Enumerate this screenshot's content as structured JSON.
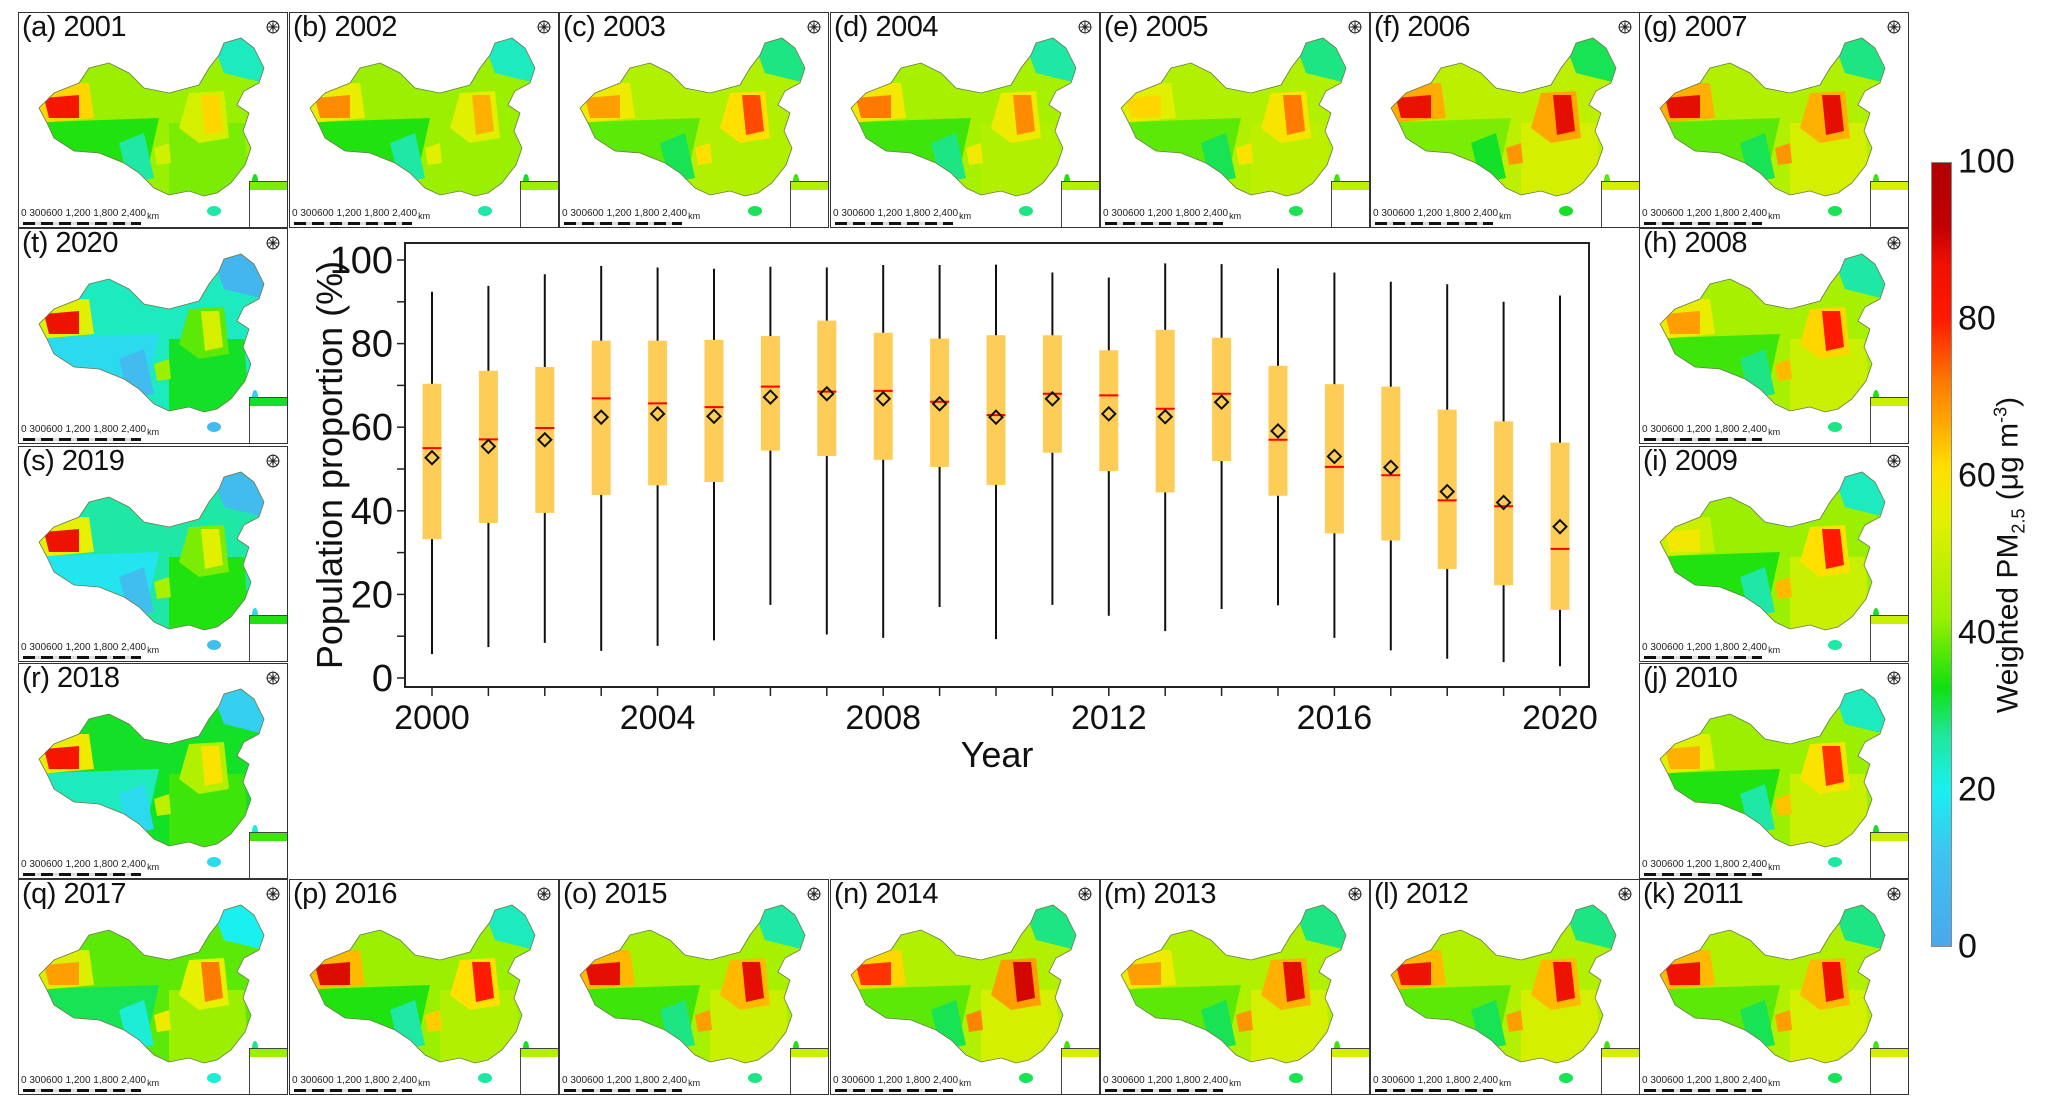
{
  "figure": {
    "panels": [
      {
        "id": "a",
        "label": "(a) 2001",
        "year": 2001,
        "west": 0.82,
        "north": 0.62,
        "base": 0.42,
        "south": 0.4
      },
      {
        "id": "b",
        "label": "(b) 2002",
        "year": 2002,
        "west": 0.7,
        "north": 0.66,
        "base": 0.42,
        "south": 0.42
      },
      {
        "id": "c",
        "label": "(c) 2003",
        "year": 2003,
        "west": 0.68,
        "north": 0.76,
        "base": 0.46,
        "south": 0.46
      },
      {
        "id": "d",
        "label": "(d) 2004",
        "year": 2004,
        "west": 0.72,
        "north": 0.7,
        "base": 0.44,
        "south": 0.46
      },
      {
        "id": "e",
        "label": "(e) 2005",
        "year": 2005,
        "west": 0.62,
        "north": 0.72,
        "base": 0.46,
        "south": 0.48
      },
      {
        "id": "f",
        "label": "(f) 2006",
        "year": 2006,
        "west": 0.85,
        "north": 0.86,
        "base": 0.48,
        "south": 0.52
      },
      {
        "id": "g",
        "label": "(g) 2007",
        "year": 2007,
        "west": 0.86,
        "north": 0.86,
        "base": 0.46,
        "south": 0.52
      },
      {
        "id": "h",
        "label": "(h) 2008",
        "year": 2008,
        "west": 0.68,
        "north": 0.8,
        "base": 0.44,
        "south": 0.5
      },
      {
        "id": "i",
        "label": "(i) 2009",
        "year": 2009,
        "west": 0.58,
        "north": 0.8,
        "base": 0.42,
        "south": 0.5
      },
      {
        "id": "j",
        "label": "(j) 2010",
        "year": 2010,
        "west": 0.66,
        "north": 0.78,
        "base": 0.42,
        "south": 0.5
      },
      {
        "id": "k",
        "label": "(k) 2011",
        "year": 2011,
        "west": 0.84,
        "north": 0.84,
        "base": 0.46,
        "south": 0.52
      },
      {
        "id": "l",
        "label": "(l) 2012",
        "year": 2012,
        "west": 0.84,
        "north": 0.84,
        "base": 0.46,
        "south": 0.52
      },
      {
        "id": "m",
        "label": "(m) 2013",
        "year": 2013,
        "west": 0.68,
        "north": 0.86,
        "base": 0.46,
        "south": 0.52
      },
      {
        "id": "n",
        "label": "(n) 2014",
        "year": 2014,
        "west": 0.78,
        "north": 0.9,
        "base": 0.46,
        "south": 0.52
      },
      {
        "id": "o",
        "label": "(o) 2015",
        "year": 2015,
        "west": 0.86,
        "north": 0.86,
        "base": 0.44,
        "south": 0.5
      },
      {
        "id": "p",
        "label": "(p) 2016",
        "year": 2016,
        "west": 0.88,
        "north": 0.8,
        "base": 0.42,
        "south": 0.46
      },
      {
        "id": "q",
        "label": "(q) 2017",
        "year": 2017,
        "west": 0.68,
        "north": 0.72,
        "base": 0.38,
        "south": 0.42
      },
      {
        "id": "r",
        "label": "(r) 2018",
        "year": 2018,
        "west": 0.82,
        "north": 0.6,
        "base": 0.32,
        "south": 0.36
      },
      {
        "id": "s",
        "label": "(s) 2019",
        "year": 2019,
        "west": 0.84,
        "north": 0.54,
        "base": 0.26,
        "south": 0.34
      },
      {
        "id": "t",
        "label": "(t) 2020",
        "year": 2020,
        "west": 0.84,
        "north": 0.52,
        "base": 0.24,
        "south": 0.32
      }
    ],
    "scale_bar": {
      "ticks": "0  300600    1,200   1,800   2,400",
      "unit": "km"
    },
    "colorbar": {
      "title_main": "Weighted PM",
      "title_sub": "2.5",
      "title_unit_pre": " (μg m",
      "title_unit_sup": "-3",
      "title_unit_post": ")",
      "ticks": [
        "0",
        "20",
        "40",
        "60",
        "80",
        "100"
      ],
      "range": [
        0,
        100
      ]
    }
  },
  "chart_data": {
    "type": "box",
    "title": "",
    "xlabel": "Year",
    "ylabel": "Population proportion (%)",
    "ylim": [
      0,
      100
    ],
    "yticks": [
      0,
      20,
      40,
      60,
      80,
      100
    ],
    "xticks_labeled": [
      2000,
      2004,
      2008,
      2012,
      2016,
      2020
    ],
    "box_color": "#fecd57",
    "median_color": "#ff0000",
    "mean_marker": "diamond",
    "categories": [
      2000,
      2001,
      2002,
      2003,
      2004,
      2005,
      2006,
      2007,
      2008,
      2009,
      2010,
      2011,
      2012,
      2013,
      2014,
      2015,
      2016,
      2017,
      2018,
      2019,
      2020
    ],
    "series": [
      {
        "name": "whisker_max",
        "values": [
          92.4,
          93.8,
          96.6,
          98.6,
          98.2,
          97.9,
          98.4,
          98.2,
          98.8,
          98.8,
          98.9,
          97.0,
          95.8,
          99.2,
          99.0,
          98.0,
          97.0,
          94.8,
          94.2,
          90.0,
          91.5
        ]
      },
      {
        "name": "q3",
        "values": [
          70.4,
          73.5,
          74.4,
          80.7,
          80.7,
          80.9,
          81.8,
          85.5,
          82.6,
          81.2,
          82.0,
          82.0,
          78.4,
          83.3,
          81.4,
          74.7,
          70.3,
          69.7,
          64.2,
          61.4,
          56.3
        ]
      },
      {
        "name": "median",
        "values": [
          55.0,
          57.1,
          59.8,
          66.9,
          65.7,
          64.8,
          69.7,
          68.5,
          68.7,
          66.1,
          62.9,
          68.0,
          67.6,
          64.4,
          68.0,
          57.0,
          50.5,
          48.5,
          42.5,
          41.1,
          30.9
        ]
      },
      {
        "name": "mean",
        "values": [
          52.7,
          55.4,
          57.0,
          62.4,
          63.2,
          62.6,
          67.2,
          68.0,
          66.8,
          65.6,
          62.4,
          66.8,
          63.2,
          62.5,
          66.0,
          59.1,
          53.0,
          50.4,
          44.6,
          42.0,
          36.2
        ]
      },
      {
        "name": "q1",
        "values": [
          33.2,
          37.1,
          39.5,
          43.8,
          46.1,
          46.9,
          54.4,
          53.1,
          52.2,
          50.5,
          46.2,
          53.9,
          49.5,
          44.4,
          51.9,
          43.6,
          34.6,
          32.9,
          26.1,
          22.2,
          16.3
        ]
      },
      {
        "name": "whisker_min",
        "values": [
          5.7,
          7.4,
          8.4,
          6.5,
          7.7,
          9.0,
          17.5,
          10.4,
          9.6,
          17.0,
          9.3,
          17.5,
          14.9,
          11.2,
          16.5,
          17.4,
          9.6,
          6.6,
          4.6,
          3.8,
          2.8
        ]
      }
    ]
  }
}
